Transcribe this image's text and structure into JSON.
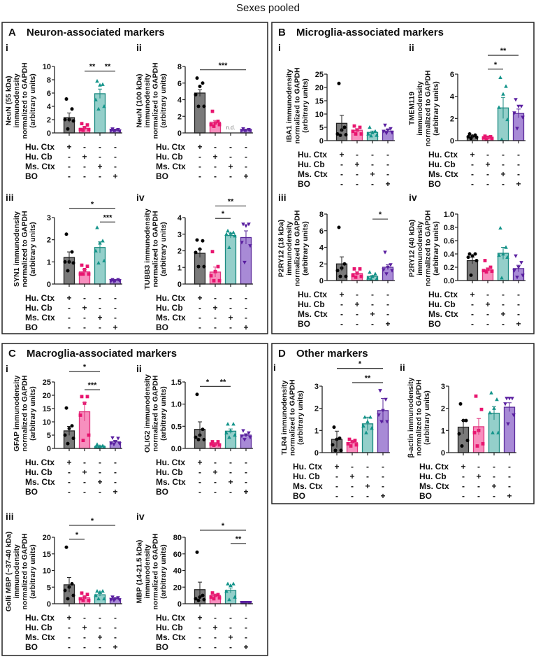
{
  "figure_title": "Sexes pooled",
  "conditions": [
    "Hu. Ctx",
    "Hu. Cb",
    "Ms. Ctx",
    "BO"
  ],
  "signs": [
    [
      "+",
      "-",
      "-",
      "-"
    ],
    [
      "-",
      "+",
      "-",
      "-"
    ],
    [
      "-",
      "-",
      "+",
      "-"
    ],
    [
      "-",
      "-",
      "-",
      "+"
    ]
  ],
  "colors": {
    "hu_ctx": {
      "fill": "#7a7a7a",
      "stroke": "#222222",
      "point": "#000000",
      "marker": "circle"
    },
    "hu_cb": {
      "fill": "#f78fbe",
      "stroke": "#e0337e",
      "point": "#e8156f",
      "marker": "square"
    },
    "ms_ctx": {
      "fill": "#94cfca",
      "stroke": "#1a8a80",
      "point": "#13948a",
      "marker": "triangle-up"
    },
    "bo": {
      "fill": "#a88ad6",
      "stroke": "#5b2a9b",
      "point": "#5a1fa0",
      "marker": "triangle-down"
    }
  },
  "panels": [
    {
      "letter": "A",
      "title": "Neuron-associated markers"
    },
    {
      "letter": "B",
      "title": "Microglia-associated markers"
    },
    {
      "letter": "C",
      "title": "Macroglia-associated markers"
    },
    {
      "letter": "D",
      "title": "Other markers"
    }
  ],
  "chart_data": [
    {
      "type": "bar",
      "panel": "A",
      "label": "i",
      "ylabel": [
        "NeuN (55 kDa)",
        "immunodensity",
        "normalized to GAPDH",
        "(arbitrary units)"
      ],
      "ylim": [
        0,
        10
      ],
      "yticks": [
        "0",
        "2",
        "4",
        "6",
        "8",
        "10"
      ],
      "means": [
        2.3,
        0.7,
        5.9,
        0.4
      ],
      "sem": [
        0.7,
        0.25,
        0.7,
        0.1
      ],
      "points": [
        [
          5.1,
          3.6,
          2.0,
          2.0,
          1.8,
          0.6
        ],
        [
          1.4,
          1.2,
          0.8,
          0.5,
          0.5,
          0.4
        ],
        [
          7.8,
          7.3,
          7.2,
          5.0,
          4.0,
          3.6
        ],
        [
          0.6,
          0.5,
          0.4,
          0.4,
          0.3,
          0.3
        ]
      ],
      "significance": [
        {
          "from": 1,
          "to": 2,
          "label": "**",
          "y": 9.3
        },
        {
          "from": 2,
          "to": 3,
          "label": "**",
          "y": 9.3
        }
      ]
    },
    {
      "type": "bar",
      "panel": "A",
      "label": "ii",
      "ylabel": [
        "NeuN (100 kDa)",
        "immunodensity",
        "normalized to GAPDH",
        "(arbitrary units)"
      ],
      "ylim": [
        0,
        8
      ],
      "yticks": [
        "0",
        "2",
        "4",
        "6",
        "8"
      ],
      "means": [
        4.8,
        1.3,
        null,
        0.35
      ],
      "sem": [
        0.4,
        0.2,
        null,
        0.05
      ],
      "points": [
        [
          6.6,
          6.0,
          5.6,
          4.6,
          3.2,
          3.2
        ],
        [
          2.6,
          1.4,
          1.2,
          1.0,
          1.0,
          0.8
        ],
        [],
        [
          0.5,
          0.4,
          0.3,
          0.3,
          0.3,
          0.3
        ]
      ],
      "not_detected": {
        "group": 2,
        "label": "n.d."
      },
      "significance": [
        {
          "from": 0,
          "to": 3,
          "label": "***",
          "y": 7.6
        }
      ]
    },
    {
      "type": "bar",
      "panel": "A",
      "label": "iii",
      "ylabel": [
        "SYN1 immunodensity",
        "normalized to GAPDH",
        "(arbitrary units)"
      ],
      "ylim": [
        0,
        3
      ],
      "yticks": [
        "0",
        "1",
        "2",
        "3"
      ],
      "means": [
        1.2,
        0.55,
        1.65,
        0.18
      ],
      "sem": [
        0.25,
        0.1,
        0.25,
        0.02
      ],
      "points": [
        [
          2.25,
          1.45,
          1.0,
          1.0,
          0.95,
          0.6
        ],
        [
          0.85,
          0.8,
          0.65,
          0.45,
          0.45,
          0.45
        ],
        [
          2.55,
          1.95,
          1.85,
          1.5,
          1.05,
          0.95
        ],
        [
          0.2,
          0.2,
          0.15,
          0.15,
          0.15,
          0.12
        ]
      ],
      "significance": [
        {
          "from": 0,
          "to": 3,
          "label": "*",
          "y": 3.4
        },
        {
          "from": 2,
          "to": 3,
          "label": "***",
          "y": 2.8
        }
      ]
    },
    {
      "type": "bar",
      "panel": "A",
      "label": "iv",
      "ylabel": [
        "TUBB3 immunodensity",
        "normalized to GAPDH",
        "(arbitrary units)"
      ],
      "ylim": [
        0,
        4
      ],
      "yticks": [
        "0",
        "1",
        "2",
        "3",
        "4"
      ],
      "means": [
        1.85,
        0.72,
        2.92,
        2.8
      ],
      "sem": [
        0.25,
        0.3,
        0.15,
        0.4
      ],
      "points": [
        [
          2.65,
          2.6,
          2.1,
          1.9,
          1.05,
          1.05
        ],
        [
          1.95,
          1.05,
          0.75,
          0.5,
          0.2,
          0.2
        ],
        [
          3.2,
          3.1,
          3.05,
          3.0,
          2.9,
          2.2
        ],
        [
          3.6,
          3.6,
          3.5,
          2.5,
          2.3,
          1.3
        ]
      ],
      "significance": [
        {
          "from": 1,
          "to": 2,
          "label": "*",
          "y": 3.95
        },
        {
          "from": 1,
          "to": 3,
          "label": "**",
          "y": 4.7
        }
      ]
    },
    {
      "type": "bar",
      "panel": "B",
      "label": "i",
      "ylabel": [
        "IBA1 immunodensity",
        "normalized to GAPDH",
        "(arbitrary units)"
      ],
      "ylim": [
        0,
        25
      ],
      "yticks": [
        "0",
        "5",
        "10",
        "15",
        "20",
        "25"
      ],
      "means": [
        6.5,
        3.9,
        3.1,
        3.6
      ],
      "sem": [
        3.0,
        0.6,
        0.5,
        0.5
      ],
      "points": [
        [
          21.5,
          5,
          4,
          2.5,
          2.2,
          2
        ],
        [
          5.5,
          5,
          4,
          3.5,
          2.5,
          2.5
        ],
        [
          5,
          3.5,
          3,
          2.5,
          2,
          1.8
        ],
        [
          5.8,
          4.5,
          4,
          3.5,
          3,
          2.8
        ]
      ],
      "significance": []
    },
    {
      "type": "bar",
      "panel": "B",
      "label": "ii",
      "ylabel": [
        "TMEM119",
        "immunodensity",
        "normalized to GAPDH",
        "(arbitrary units)"
      ],
      "ylim": [
        0,
        6
      ],
      "yticks": [
        "0",
        "2",
        "4",
        "6"
      ],
      "means": [
        0.35,
        0.25,
        2.95,
        2.45
      ],
      "sem": [
        0.1,
        0.05,
        0.95,
        0.4
      ],
      "points": [
        [
          0.6,
          0.5,
          0.4,
          0.35,
          0.3,
          0.2
        ],
        [
          0.4,
          0.35,
          0.3,
          0.25,
          0.2,
          0.1
        ],
        [
          5.7,
          4.9,
          4.2,
          3.0,
          1.9,
          0.1
        ],
        [
          3.7,
          3.1,
          3.1,
          2.5,
          2.1,
          1.1
        ]
      ],
      "significance": [
        {
          "from": 1,
          "to": 2,
          "label": "*",
          "y": 6.45
        },
        {
          "from": 1,
          "to": 3,
          "label": "**",
          "y": 7.7
        }
      ]
    },
    {
      "type": "bar",
      "panel": "B",
      "label": "iii",
      "ylabel": [
        "P2RY12 (18 kDa)",
        "immunodensity",
        "normalized to GAPDH",
        "(arbitrary units)"
      ],
      "ylim": [
        0,
        8
      ],
      "yticks": [
        "0",
        "2",
        "4",
        "6",
        "8"
      ],
      "means": [
        2.0,
        0.85,
        0.5,
        1.6
      ],
      "sem": [
        0.85,
        0.2,
        0.1,
        0.3
      ],
      "points": [
        [
          6.4,
          2,
          1.5,
          1.2,
          0.5,
          0.5
        ],
        [
          1.4,
          1.4,
          0.9,
          0.6,
          0.5,
          0.4
        ],
        [
          1,
          0.8,
          0.5,
          0.3,
          0.2,
          0.2
        ],
        [
          3.4,
          1.9,
          1.6,
          1.3,
          1.2,
          0.8
        ]
      ],
      "significance": [
        {
          "from": 2,
          "to": 3,
          "label": "*",
          "y": 7.4
        }
      ]
    },
    {
      "type": "bar",
      "panel": "B",
      "label": "iv",
      "ylabel": [
        "P2RY12 (40 kDa)",
        "immunodensity",
        "normalized to GAPDH",
        "(arbitrary units)"
      ],
      "ylim": [
        0,
        1
      ],
      "yticks": [
        "0.0",
        "0.2",
        "0.4",
        "0.6",
        "0.8",
        "1.0"
      ],
      "means": [
        0.3,
        0.16,
        0.41,
        0.18
      ],
      "sem": [
        0.05,
        0.03,
        0.09,
        0.05
      ],
      "points": [
        [
          0.4,
          0.4,
          0.37,
          0.35,
          0.3,
          0.08
        ],
        [
          0.3,
          0.2,
          0.17,
          0.15,
          0.14,
          0.13
        ],
        [
          0.79,
          0.5,
          0.4,
          0.38,
          0.35,
          0.04
        ],
        [
          0.37,
          0.27,
          0.2,
          0.15,
          0.08,
          0.05
        ]
      ],
      "significance": []
    },
    {
      "type": "bar",
      "panel": "C",
      "label": "i",
      "ylabel": [
        "GFAP immunodensity",
        "normalized to GAPDH",
        "(arbitrary units)"
      ],
      "ylim": [
        0,
        25
      ],
      "yticks": [
        "0",
        "5",
        "10",
        "15",
        "20",
        "25"
      ],
      "means": [
        6.6,
        13.8,
        0.8,
        2.5
      ],
      "sem": [
        1.7,
        3.5,
        0.2,
        0.5
      ],
      "points": [
        [
          15.2,
          8.5,
          7.5,
          5,
          3.8,
          1.8
        ],
        [
          19.5,
          19.5,
          17,
          12.5,
          5,
          3
        ],
        [
          1.5,
          1,
          0.8,
          0.6,
          0.5,
          0.4
        ],
        [
          4,
          3.8,
          2.5,
          2,
          1.8,
          1.5
        ]
      ],
      "significance": [
        {
          "from": 0,
          "to": 2,
          "label": "*",
          "y": 28.9
        },
        {
          "from": 1,
          "to": 2,
          "label": "***",
          "y": 22.1
        }
      ]
    },
    {
      "type": "bar",
      "panel": "C",
      "label": "ii",
      "ylabel": [
        "OLIG2 immunodensity",
        "normalized to GAPDH",
        "(arbitrary units)"
      ],
      "ylim": [
        0,
        1.5
      ],
      "yticks": [
        "0.0",
        "0.5",
        "1.0",
        "1.5"
      ],
      "means": [
        0.43,
        0.1,
        0.39,
        0.3
      ],
      "sem": [
        0.17,
        0.02,
        0.05,
        0.03
      ],
      "points": [
        [
          1.22,
          0.43,
          0.3,
          0.25,
          0.2,
          0.2
        ],
        [
          0.15,
          0.15,
          0.1,
          0.1,
          0.08,
          0.07
        ],
        [
          0.55,
          0.55,
          0.4,
          0.35,
          0.3,
          0.25
        ],
        [
          0.4,
          0.35,
          0.3,
          0.28,
          0.25,
          0.2
        ]
      ],
      "significance": [
        {
          "from": 0,
          "to": 1,
          "label": "*",
          "y": 1.4
        },
        {
          "from": 1,
          "to": 2,
          "label": "**",
          "y": 1.4
        }
      ]
    },
    {
      "type": "bar",
      "panel": "C",
      "label": "iii",
      "ylabel": [
        "Golli  MBP (~37-40 kDa)",
        "immunodensity",
        "normalized to GAPDH",
        "(arbitrary units)"
      ],
      "ylim": [
        0,
        20
      ],
      "yticks": [
        "0",
        "5",
        "10",
        "15",
        "20"
      ],
      "means": [
        5.7,
        1.8,
        2.7,
        1.5
      ],
      "sem": [
        2.2,
        0.5,
        0.4,
        0.2
      ],
      "points": [
        [
          17,
          6,
          5,
          4,
          2.5,
          1.5
        ],
        [
          3.2,
          2.8,
          2,
          1.5,
          1,
          1
        ],
        [
          3.8,
          3.8,
          3.5,
          2.5,
          1.5,
          1.5
        ],
        [
          2,
          1.8,
          1.5,
          1.3,
          1.2,
          1
        ]
      ],
      "significance": [
        {
          "from": 0,
          "to": 1,
          "label": "*",
          "y": 19.4
        },
        {
          "from": 0,
          "to": 3,
          "label": "*",
          "y": 23.6
        }
      ]
    },
    {
      "type": "bar",
      "panel": "C",
      "label": "iv",
      "ylabel": [
        "MBP (14-21.5 kDa)",
        "immunodensity",
        "normalized to GAPDH",
        "(arbitrary units)"
      ],
      "ylim": [
        0,
        80
      ],
      "yticks": [
        "0",
        "20",
        "40",
        "60",
        "80"
      ],
      "means": [
        17,
        10,
        16,
        1.5
      ],
      "sem": [
        9,
        1.5,
        3,
        0.2
      ],
      "points": [
        [
          62,
          10,
          8,
          6,
          5,
          4
        ],
        [
          13,
          11,
          10,
          8,
          7,
          6
        ],
        [
          24,
          24,
          22,
          15,
          8,
          5
        ],
        [
          1.5,
          1.5,
          1.5,
          1.5,
          1.5,
          1.5
        ]
      ],
      "significance": [
        {
          "from": 2,
          "to": 3,
          "label": "**",
          "y": 72.5
        },
        {
          "from": 0,
          "to": 3,
          "label": "*",
          "y": 88.5
        }
      ]
    },
    {
      "type": "bar",
      "panel": "D",
      "label": "i",
      "ylabel": [
        "TLR4 immunodensity",
        "normalized to GAPDH",
        "(arbitrary units)"
      ],
      "ylim": [
        0,
        3
      ],
      "yticks": [
        "0",
        "1",
        "2",
        "3"
      ],
      "means": [
        0.6,
        0.45,
        1.3,
        1.9
      ],
      "sem": [
        0.37,
        0.1,
        0.3,
        0.55
      ],
      "points": [
        [
          1.15,
          0.65,
          0.6,
          0.35,
          0.1,
          0.1
        ],
        [
          0.6,
          0.55,
          0.5,
          0.4,
          0.35,
          0.3
        ],
        [
          1.6,
          1.6,
          1.4,
          1.2,
          1.1,
          0.9
        ],
        [
          2.8,
          2.4,
          1.9,
          1.7,
          1.4,
          1.4
        ]
      ],
      "significance": [
        {
          "from": 1,
          "to": 3,
          "label": "**",
          "y": 3.16
        },
        {
          "from": 0,
          "to": 3,
          "label": "*",
          "y": 3.8
        }
      ]
    },
    {
      "type": "bar",
      "panel": "D",
      "label": "ii",
      "ylabel": [
        "β-actin immunodensity",
        "normalized to GAPDH",
        "(arbitrary units)"
      ],
      "ylim": [
        0,
        3
      ],
      "yticks": [
        "0",
        "1",
        "2",
        "3"
      ],
      "means": [
        1.15,
        1.17,
        1.78,
        2.05
      ],
      "sem": [
        0.3,
        0.37,
        0.3,
        0.2
      ],
      "points": [
        [
          2.2,
          1.45,
          1.45,
          0.85,
          0.55,
          0.3
        ],
        [
          2.55,
          1.95,
          1.0,
          0.9,
          0.4,
          0.3
        ],
        [
          2.7,
          2.4,
          2.0,
          1.8,
          0.9,
          0.9
        ],
        [
          2.45,
          2.45,
          2.45,
          2.2,
          1.7,
          1.3
        ]
      ],
      "significance": []
    }
  ]
}
